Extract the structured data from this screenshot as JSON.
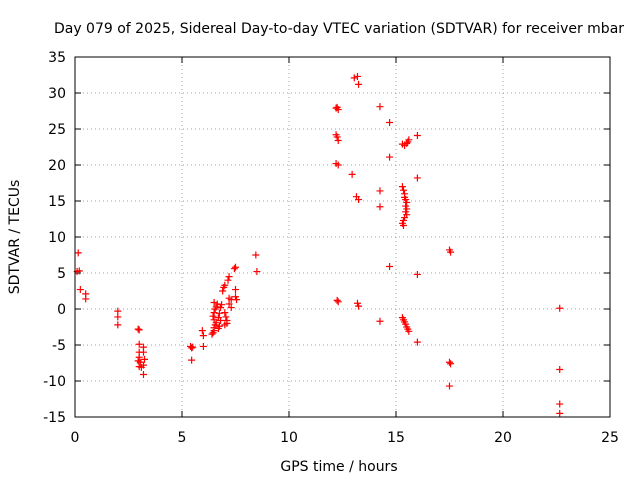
{
  "chart_data": {
    "type": "scatter",
    "title": "Day 079 of 2025, Sidereal Day-to-day VTEC variation (SDTVAR) for receiver mbar",
    "xlabel": "GPS time / hours",
    "ylabel": "SDTVAR / TECUs",
    "xlim": [
      0,
      25
    ],
    "ylim": [
      -15,
      35
    ],
    "xticks": [
      0,
      5,
      10,
      15,
      20,
      25
    ],
    "yticks": [
      -15,
      -10,
      -5,
      0,
      5,
      10,
      15,
      20,
      25,
      30,
      35
    ],
    "grid": true,
    "color": "#ff0000",
    "marker": "plus",
    "points": [
      [
        0.15,
        7.8
      ],
      [
        0.1,
        5.2
      ],
      [
        0.2,
        5.3
      ],
      [
        0.25,
        2.7
      ],
      [
        0.5,
        2.1
      ],
      [
        0.5,
        1.4
      ],
      [
        2.0,
        -0.3
      ],
      [
        2.0,
        -1.1
      ],
      [
        2.0,
        -2.2
      ],
      [
        2.95,
        -2.8
      ],
      [
        3.0,
        -2.9
      ],
      [
        3.0,
        -4.9
      ],
      [
        3.0,
        -6.0
      ],
      [
        3.0,
        -6.7
      ],
      [
        2.95,
        -7.2
      ],
      [
        3.05,
        -7.4
      ],
      [
        3.0,
        -8.0
      ],
      [
        3.1,
        -8.1
      ],
      [
        3.2,
        -5.3
      ],
      [
        3.2,
        -6.0
      ],
      [
        3.25,
        -7.0
      ],
      [
        3.2,
        -7.8
      ],
      [
        3.2,
        -9.1
      ],
      [
        5.4,
        -5.2
      ],
      [
        5.45,
        -5.4
      ],
      [
        5.5,
        -5.3
      ],
      [
        5.45,
        -7.1
      ],
      [
        5.95,
        -3.0
      ],
      [
        6.0,
        -3.7
      ],
      [
        6.0,
        -5.2
      ],
      [
        6.4,
        -3.5
      ],
      [
        6.45,
        -3.3
      ],
      [
        6.5,
        -3.0
      ],
      [
        6.5,
        -2.6
      ],
      [
        6.55,
        -2.2
      ],
      [
        6.6,
        -1.9
      ],
      [
        6.5,
        -1.5
      ],
      [
        6.45,
        -1.0
      ],
      [
        6.5,
        -0.5
      ],
      [
        6.55,
        0.0
      ],
      [
        6.6,
        0.3
      ],
      [
        6.65,
        0.7
      ],
      [
        6.5,
        0.9
      ],
      [
        6.7,
        -2.7
      ],
      [
        6.75,
        -2.4
      ],
      [
        6.8,
        -1.6
      ],
      [
        6.7,
        -1.2
      ],
      [
        6.75,
        -0.6
      ],
      [
        6.8,
        0.2
      ],
      [
        6.85,
        0.6
      ],
      [
        6.9,
        2.5
      ],
      [
        6.95,
        3.0
      ],
      [
        7.0,
        3.3
      ],
      [
        7.0,
        -0.5
      ],
      [
        7.05,
        -1.1
      ],
      [
        7.1,
        -1.6
      ],
      [
        7.0,
        -2.2
      ],
      [
        7.1,
        -2.0
      ],
      [
        7.15,
        4.0
      ],
      [
        7.2,
        4.5
      ],
      [
        7.2,
        1.5
      ],
      [
        7.3,
        1.3
      ],
      [
        7.3,
        0.2
      ],
      [
        7.2,
        0.7
      ],
      [
        7.45,
        5.6
      ],
      [
        7.5,
        5.8
      ],
      [
        7.5,
        2.7
      ],
      [
        7.5,
        1.7
      ],
      [
        7.55,
        1.3
      ],
      [
        8.45,
        7.5
      ],
      [
        8.5,
        5.2
      ],
      [
        12.2,
        27.9
      ],
      [
        12.25,
        28.0
      ],
      [
        12.3,
        27.7
      ],
      [
        12.2,
        24.2
      ],
      [
        12.25,
        23.9
      ],
      [
        12.3,
        23.4
      ],
      [
        12.2,
        20.2
      ],
      [
        12.3,
        20.0
      ],
      [
        12.25,
        1.2
      ],
      [
        12.3,
        1.0
      ],
      [
        12.95,
        18.7
      ],
      [
        13.05,
        32.1
      ],
      [
        13.2,
        32.3
      ],
      [
        13.25,
        31.2
      ],
      [
        13.15,
        15.6
      ],
      [
        13.25,
        15.2
      ],
      [
        13.2,
        0.8
      ],
      [
        13.25,
        0.4
      ],
      [
        14.25,
        28.1
      ],
      [
        14.25,
        16.4
      ],
      [
        14.25,
        14.2
      ],
      [
        14.25,
        -1.7
      ],
      [
        14.7,
        25.9
      ],
      [
        14.7,
        21.1
      ],
      [
        14.7,
        5.9
      ],
      [
        15.3,
        22.9
      ],
      [
        15.4,
        22.7
      ],
      [
        15.5,
        23.0
      ],
      [
        15.55,
        23.2
      ],
      [
        15.6,
        23.5
      ],
      [
        15.3,
        17.0
      ],
      [
        15.35,
        16.5
      ],
      [
        15.4,
        16.0
      ],
      [
        15.4,
        15.5
      ],
      [
        15.45,
        15.2
      ],
      [
        15.5,
        14.8
      ],
      [
        15.45,
        14.3
      ],
      [
        15.5,
        13.9
      ],
      [
        15.45,
        13.5
      ],
      [
        15.5,
        13.1
      ],
      [
        15.4,
        12.7
      ],
      [
        15.35,
        12.3
      ],
      [
        15.3,
        11.9
      ],
      [
        15.35,
        11.6
      ],
      [
        15.3,
        -1.2
      ],
      [
        15.35,
        -1.5
      ],
      [
        15.4,
        -1.8
      ],
      [
        15.45,
        -2.1
      ],
      [
        15.5,
        -2.5
      ],
      [
        15.55,
        -2.8
      ],
      [
        15.6,
        -3.1
      ],
      [
        16.0,
        24.1
      ],
      [
        16.0,
        18.2
      ],
      [
        16.0,
        4.8
      ],
      [
        16.0,
        -4.6
      ],
      [
        17.5,
        8.2
      ],
      [
        17.55,
        7.9
      ],
      [
        17.5,
        -7.4
      ],
      [
        17.55,
        -7.6
      ],
      [
        17.5,
        -10.7
      ],
      [
        22.65,
        0.1
      ],
      [
        22.65,
        -8.4
      ],
      [
        22.65,
        -13.2
      ],
      [
        22.65,
        -14.5
      ]
    ]
  }
}
